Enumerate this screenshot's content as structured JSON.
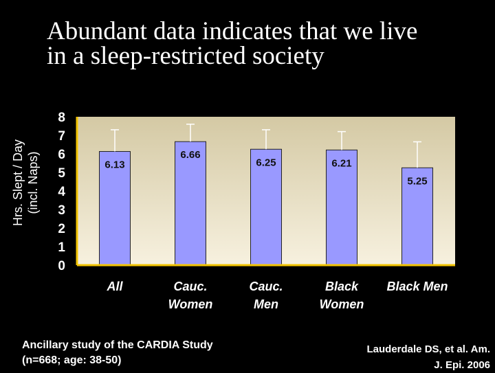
{
  "slide": {
    "title_lines": [
      "Abundant data indicates that we live",
      "in a sleep-restricted society"
    ],
    "footnote_lines": [
      "Ancillary study of the CARDIA Study",
      "(n=668; age: 38-50)"
    ],
    "citation_lines": [
      "Lauderdale DS, et al. Am.",
      "J. Epi. 2006"
    ]
  },
  "colors": {
    "background": "#000000",
    "plot_background_top": "#d4c9a4",
    "plot_background_bottom": "#f7f1df",
    "axis": "#f2c400",
    "bar_fill": "#9999ff",
    "bar_stroke": "#222222",
    "error_bar": "#ffffff",
    "text": "#ffffff"
  },
  "chart_data": {
    "type": "bar",
    "title": "",
    "xlabel": "",
    "ylabel_lines": [
      "Hrs. Slept / Day",
      "(incl. Naps)"
    ],
    "ylim": [
      0,
      8
    ],
    "yticks": [
      "0",
      "1",
      "2",
      "3",
      "4",
      "5",
      "6",
      "7",
      "8"
    ],
    "categories": [
      [
        "All"
      ],
      [
        "Cauc.",
        "Women"
      ],
      [
        "Cauc.",
        "Men"
      ],
      [
        "Black",
        "Women"
      ],
      [
        "Black Men"
      ]
    ],
    "values": [
      6.13,
      6.66,
      6.25,
      6.21,
      5.25
    ],
    "value_labels": [
      "6.13",
      "6.66",
      "6.25",
      "6.21",
      "5.25"
    ],
    "error_upper": [
      7.3,
      7.6,
      7.3,
      7.2,
      6.65
    ],
    "grid": false,
    "legend": "none"
  }
}
